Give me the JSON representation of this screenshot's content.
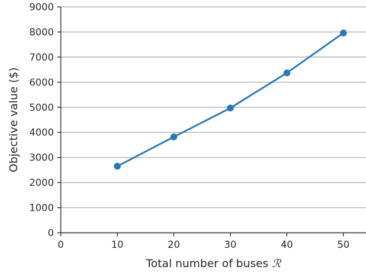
{
  "chart_data": {
    "type": "line",
    "title": "",
    "xlabel": "Total number of buses ",
    "xlabel_symbol": "ℛ",
    "ylabel": "Objective value ($)",
    "xlim": [
      0,
      54
    ],
    "ylim": [
      0,
      9000
    ],
    "x_ticks": [
      0,
      10,
      20,
      30,
      40,
      50
    ],
    "y_ticks": [
      0,
      1000,
      2000,
      3000,
      4000,
      5000,
      6000,
      7000,
      8000,
      9000
    ],
    "grid": "horizontal",
    "legend": "none",
    "series": [
      {
        "x": [
          10,
          20,
          30,
          40,
          50
        ],
        "y": [
          2650,
          3820,
          4970,
          6370,
          7960
        ],
        "color": "#2878b5"
      }
    ]
  }
}
